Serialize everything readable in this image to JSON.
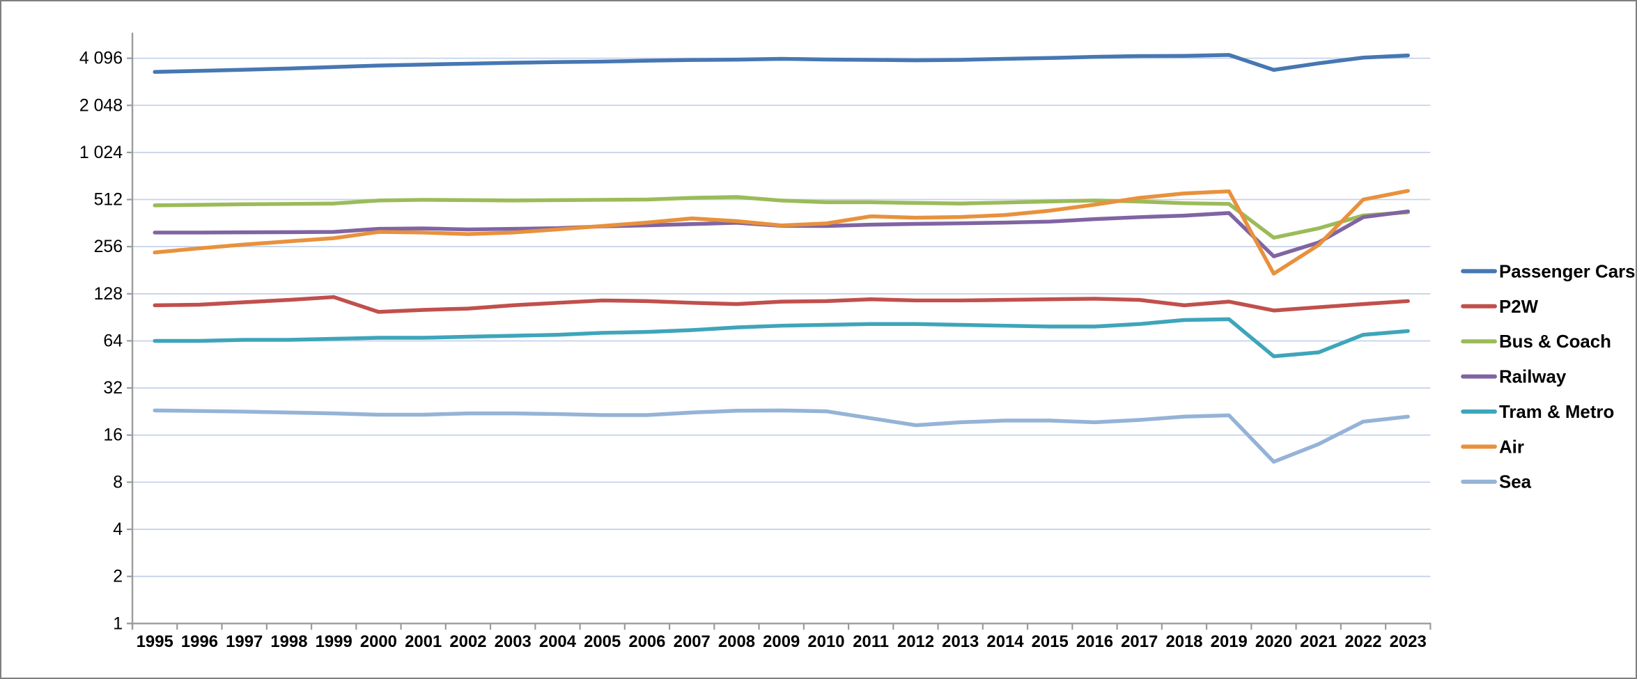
{
  "chart_data": {
    "type": "line",
    "title": "",
    "x": [
      1995,
      1996,
      1997,
      1998,
      1999,
      2000,
      2001,
      2002,
      2003,
      2004,
      2005,
      2006,
      2007,
      2008,
      2009,
      2010,
      2011,
      2012,
      2013,
      2014,
      2015,
      2016,
      2017,
      2018,
      2019,
      2020,
      2021,
      2022,
      2023
    ],
    "series": [
      {
        "name": "Passenger Cars",
        "color": "#4677B2",
        "values": [
          3350,
          3400,
          3460,
          3520,
          3600,
          3680,
          3730,
          3780,
          3830,
          3870,
          3900,
          3950,
          3990,
          4010,
          4060,
          4020,
          4000,
          3970,
          4000,
          4060,
          4110,
          4180,
          4230,
          4240,
          4300,
          3450,
          3800,
          4130,
          4270
        ]
      },
      {
        "name": "P2W",
        "color": "#C0504D",
        "values": [
          108,
          109,
          113,
          117,
          122,
          98,
          101,
          103,
          108,
          112,
          116,
          115,
          112,
          110,
          114,
          115,
          118,
          116,
          116,
          117,
          118,
          119,
          117,
          108,
          114,
          100,
          105,
          110,
          115
        ]
      },
      {
        "name": "Bus & Coach",
        "color": "#9BBB59",
        "values": [
          470,
          474,
          478,
          480,
          483,
          505,
          510,
          508,
          505,
          508,
          510,
          512,
          525,
          532,
          505,
          492,
          492,
          487,
          483,
          490,
          498,
          505,
          497,
          485,
          480,
          292,
          335,
          405,
          425
        ]
      },
      {
        "name": "Railway",
        "color": "#8064A2",
        "values": [
          315,
          315,
          316,
          317,
          318,
          333,
          335,
          330,
          333,
          336,
          345,
          350,
          357,
          364,
          348,
          347,
          354,
          358,
          361,
          365,
          370,
          384,
          395,
          404,
          420,
          222,
          272,
          395,
          430
        ]
      },
      {
        "name": "Tram & Metro",
        "color": "#3EA5BA",
        "values": [
          64,
          64,
          65,
          65,
          66,
          67,
          67,
          68,
          69,
          70,
          72,
          73,
          75,
          78,
          80,
          81,
          82,
          82,
          81,
          80,
          79,
          79,
          82,
          87,
          88,
          51,
          54,
          70,
          74
        ]
      },
      {
        "name": "Air",
        "color": "#E8913D",
        "values": [
          235,
          250,
          264,
          277,
          290,
          318,
          315,
          308,
          315,
          330,
          347,
          365,
          388,
          373,
          350,
          360,
          400,
          392,
          396,
          408,
          435,
          475,
          525,
          560,
          578,
          172,
          262,
          512,
          582
        ]
      },
      {
        "name": "Sea",
        "color": "#95B3D7",
        "values": [
          23,
          22.8,
          22.6,
          22.3,
          22,
          21.6,
          21.6,
          22,
          22,
          21.8,
          21.5,
          21.5,
          22.3,
          22.9,
          23,
          22.7,
          20.5,
          18.5,
          19.3,
          19.8,
          19.8,
          19.3,
          20,
          21,
          21.4,
          10.8,
          14,
          19.5,
          21
        ]
      }
    ],
    "y_axis": {
      "scale": "log2",
      "range": [
        1,
        4096
      ],
      "ticks": [
        4096,
        2048,
        1024,
        512,
        256,
        128,
        64,
        32,
        16,
        8,
        4,
        2,
        1
      ],
      "tick_labels": [
        "4 096",
        "2 048",
        "1 024",
        "512",
        "256",
        "128",
        "64",
        "32",
        "16",
        "8",
        "4",
        "2",
        "1"
      ]
    },
    "x_axis": {
      "labels": [
        "1995",
        "1996",
        "1997",
        "1998",
        "1999",
        "2000",
        "2001",
        "2002",
        "2003",
        "2004",
        "2005",
        "2006",
        "2007",
        "2008",
        "2009",
        "2010",
        "2011",
        "2012",
        "2013",
        "2014",
        "2015",
        "2016",
        "2017",
        "2018",
        "2019",
        "2020",
        "2021",
        "2022",
        "2023"
      ]
    },
    "legend": {
      "position": "right",
      "entries": [
        "Passenger Cars",
        "P2W",
        "Bus & Coach",
        "Railway",
        "Tram & Metro",
        "Air",
        "Sea"
      ]
    },
    "grid": true
  },
  "style": {
    "grid_color": "#C4D2EA",
    "axis_color": "#9B9B9B",
    "background": "#FFFFFF",
    "border_color": "#7F7F7F",
    "text_color": "#000000"
  }
}
